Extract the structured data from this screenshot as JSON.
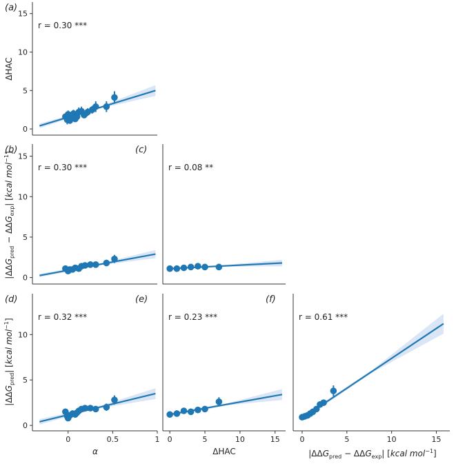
{
  "colors": {
    "series": "#1f77b4",
    "band": "#aec7e8",
    "axis": "#333333"
  },
  "chart_data": [
    {
      "panel": "a",
      "panel_label": "(a)",
      "type": "scatter",
      "annotation": "r = 0.30 ***",
      "xlim": [
        -0.4,
        1.0
      ],
      "ylim": [
        -0.8,
        16.5
      ],
      "xticks": [],
      "yticks": [
        0,
        5,
        10,
        15
      ],
      "xlabel": "",
      "ylabel": "ΔHAC",
      "points": [
        {
          "x": -0.03,
          "y": 1.6,
          "err": 0.4
        },
        {
          "x": -0.01,
          "y": 1.2,
          "err": 0.6
        },
        {
          "x": 0.0,
          "y": 1.9,
          "err": 0.5
        },
        {
          "x": 0.02,
          "y": 1.1,
          "err": 0.4
        },
        {
          "x": 0.04,
          "y": 1.5,
          "err": 0.5
        },
        {
          "x": 0.06,
          "y": 2.0,
          "err": 0.5
        },
        {
          "x": 0.08,
          "y": 1.3,
          "err": 0.4
        },
        {
          "x": 0.1,
          "y": 1.6,
          "err": 0.4
        },
        {
          "x": 0.12,
          "y": 2.2,
          "err": 0.6
        },
        {
          "x": 0.15,
          "y": 2.3,
          "err": 0.6
        },
        {
          "x": 0.18,
          "y": 1.8,
          "err": 0.4
        },
        {
          "x": 0.22,
          "y": 2.2,
          "err": 0.5
        },
        {
          "x": 0.27,
          "y": 2.5,
          "err": 0.5
        },
        {
          "x": 0.31,
          "y": 2.9,
          "err": 0.7
        },
        {
          "x": 0.43,
          "y": 2.9,
          "err": 0.7
        },
        {
          "x": 0.52,
          "y": 4.1,
          "err": 0.8
        }
      ],
      "fit": {
        "x0": -0.32,
        "y0": 0.4,
        "x1": 0.98,
        "y1": 5.0
      },
      "band": {
        "w0": 0.3,
        "wmid": 0.1,
        "w1": 0.7
      }
    },
    {
      "panel": "b",
      "panel_label": "(b)",
      "type": "scatter",
      "annotation": "r = 0.30 ***",
      "xlim": [
        -0.4,
        1.0
      ],
      "ylim": [
        -0.8,
        16.5
      ],
      "xticks": [],
      "yticks": [
        0,
        5,
        10,
        15
      ],
      "xlabel": "",
      "ylabel": "|ΔΔG_pred − ΔΔG_exp| [kcal mol⁻¹]",
      "points": [
        {
          "x": -0.03,
          "y": 1.1,
          "err": 0.3
        },
        {
          "x": 0.0,
          "y": 0.8,
          "err": 0.3
        },
        {
          "x": 0.02,
          "y": 1.0,
          "err": 0.3
        },
        {
          "x": 0.05,
          "y": 1.0,
          "err": 0.3
        },
        {
          "x": 0.08,
          "y": 1.2,
          "err": 0.3
        },
        {
          "x": 0.12,
          "y": 1.1,
          "err": 0.3
        },
        {
          "x": 0.15,
          "y": 1.4,
          "err": 0.3
        },
        {
          "x": 0.19,
          "y": 1.5,
          "err": 0.3
        },
        {
          "x": 0.25,
          "y": 1.6,
          "err": 0.3
        },
        {
          "x": 0.31,
          "y": 1.6,
          "err": 0.3
        },
        {
          "x": 0.43,
          "y": 1.8,
          "err": 0.4
        },
        {
          "x": 0.52,
          "y": 2.3,
          "err": 0.5
        }
      ],
      "fit": {
        "x0": -0.32,
        "y0": 0.25,
        "x1": 0.98,
        "y1": 2.9
      },
      "band": {
        "w0": 0.2,
        "wmid": 0.1,
        "w1": 0.5
      }
    },
    {
      "panel": "c",
      "panel_label": "(c)",
      "type": "scatter",
      "annotation": "r = 0.08 **",
      "xlim": [
        -1.0,
        16.5
      ],
      "ylim": [
        -0.8,
        16.5
      ],
      "xticks": [],
      "yticks": [],
      "xlabel": "",
      "ylabel": "",
      "points": [
        {
          "x": 0,
          "y": 1.1,
          "err": 0.2
        },
        {
          "x": 1,
          "y": 1.1,
          "err": 0.2
        },
        {
          "x": 2,
          "y": 1.2,
          "err": 0.2
        },
        {
          "x": 3,
          "y": 1.3,
          "err": 0.2
        },
        {
          "x": 4,
          "y": 1.4,
          "err": 0.2
        },
        {
          "x": 5,
          "y": 1.3,
          "err": 0.2
        },
        {
          "x": 7,
          "y": 1.3,
          "err": 0.2
        }
      ],
      "fit": {
        "x0": 0,
        "y0": 1.1,
        "x1": 16,
        "y1": 1.8
      },
      "band": {
        "w0": 0.1,
        "wmid": 0.1,
        "w1": 0.4
      }
    },
    {
      "panel": "d",
      "panel_label": "(d)",
      "type": "scatter",
      "annotation": "r = 0.32 ***",
      "xlim": [
        -0.4,
        1.0
      ],
      "ylim": [
        -0.6,
        14.5
      ],
      "xticks": [
        0.0,
        0.5,
        1.0
      ],
      "yticks": [
        0,
        5,
        10
      ],
      "xlabel": "α",
      "ylabel": "|ΔΔG_pred| [kcal mol⁻¹]",
      "points": [
        {
          "x": -0.03,
          "y": 1.5,
          "err": 0.3
        },
        {
          "x": -0.01,
          "y": 1.0,
          "err": 0.3
        },
        {
          "x": 0.0,
          "y": 0.8,
          "err": 0.3
        },
        {
          "x": 0.02,
          "y": 1.1,
          "err": 0.3
        },
        {
          "x": 0.05,
          "y": 1.3,
          "err": 0.3
        },
        {
          "x": 0.08,
          "y": 1.2,
          "err": 0.3
        },
        {
          "x": 0.1,
          "y": 1.4,
          "err": 0.3
        },
        {
          "x": 0.12,
          "y": 1.6,
          "err": 0.3
        },
        {
          "x": 0.15,
          "y": 1.8,
          "err": 0.3
        },
        {
          "x": 0.19,
          "y": 1.9,
          "err": 0.3
        },
        {
          "x": 0.25,
          "y": 1.9,
          "err": 0.3
        },
        {
          "x": 0.31,
          "y": 1.8,
          "err": 0.3
        },
        {
          "x": 0.43,
          "y": 2.0,
          "err": 0.4
        },
        {
          "x": 0.52,
          "y": 2.8,
          "err": 0.5
        }
      ],
      "fit": {
        "x0": -0.32,
        "y0": 0.4,
        "x1": 0.98,
        "y1": 3.5
      },
      "band": {
        "w0": 0.3,
        "wmid": 0.1,
        "w1": 0.6
      }
    },
    {
      "panel": "e",
      "panel_label": "(e)",
      "type": "scatter",
      "annotation": "r = 0.23 ***",
      "xlim": [
        -1.0,
        16.5
      ],
      "ylim": [
        -0.6,
        14.5
      ],
      "xticks": [
        0,
        5,
        10,
        15
      ],
      "yticks": [],
      "xlabel": "ΔHAC",
      "ylabel": "",
      "points": [
        {
          "x": 0,
          "y": 1.2,
          "err": 0.2
        },
        {
          "x": 1,
          "y": 1.3,
          "err": 0.2
        },
        {
          "x": 2,
          "y": 1.6,
          "err": 0.2
        },
        {
          "x": 3,
          "y": 1.5,
          "err": 0.2
        },
        {
          "x": 4,
          "y": 1.7,
          "err": 0.2
        },
        {
          "x": 5,
          "y": 1.8,
          "err": 0.2
        },
        {
          "x": 7,
          "y": 2.6,
          "err": 0.5
        }
      ],
      "fit": {
        "x0": 0,
        "y0": 1.2,
        "x1": 16,
        "y1": 3.4
      },
      "band": {
        "w0": 0.15,
        "wmid": 0.1,
        "w1": 0.6
      }
    },
    {
      "panel": "f",
      "panel_label": "(f)",
      "type": "scatter",
      "annotation": "r = 0.61 ***",
      "xlim": [
        -1.0,
        16.5
      ],
      "ylim": [
        -0.6,
        14.5
      ],
      "xticks": [
        0,
        5,
        10,
        15
      ],
      "yticks": [],
      "xlabel": "|ΔΔG_pred − ΔΔG_exp| [kcal mol⁻¹]",
      "ylabel": "",
      "points": [
        {
          "x": 0.0,
          "y": 0.9,
          "err": 0.1
        },
        {
          "x": 0.3,
          "y": 1.0,
          "err": 0.1
        },
        {
          "x": 0.6,
          "y": 1.1,
          "err": 0.1
        },
        {
          "x": 0.9,
          "y": 1.3,
          "err": 0.1
        },
        {
          "x": 1.2,
          "y": 1.5,
          "err": 0.2
        },
        {
          "x": 1.6,
          "y": 1.8,
          "err": 0.2
        },
        {
          "x": 2.0,
          "y": 2.3,
          "err": 0.3
        },
        {
          "x": 2.4,
          "y": 2.5,
          "err": 0.3
        },
        {
          "x": 3.5,
          "y": 3.8,
          "err": 0.6
        }
      ],
      "fit": {
        "x0": 0,
        "y0": 0.8,
        "x1": 15.8,
        "y1": 11.2
      },
      "band": {
        "w0": 0.2,
        "wmid": 0.15,
        "w1": 1.1
      }
    }
  ]
}
